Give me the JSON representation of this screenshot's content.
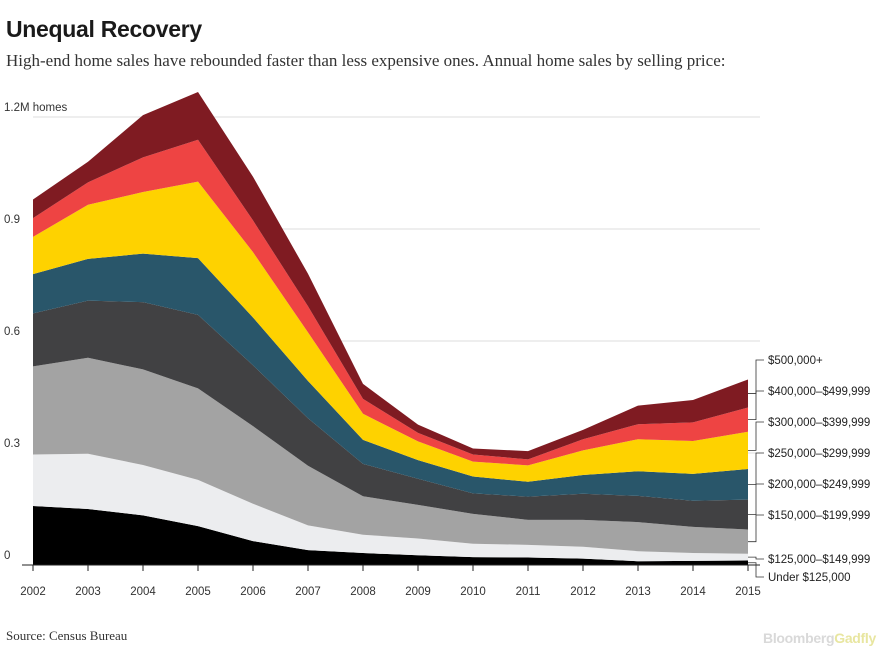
{
  "title": "Unequal Recovery",
  "subtitle": "High-end home sales have rebounded faster than less expensive ones. Annual home sales by selling price:",
  "source": "Source: Census Bureau",
  "brand": {
    "part1": "Bloomberg",
    "part2": "Gadfly"
  },
  "chart_data": {
    "type": "area",
    "stacked": true,
    "x": [
      2002,
      2003,
      2004,
      2005,
      2006,
      2007,
      2008,
      2009,
      2010,
      2011,
      2012,
      2013,
      2014,
      2015
    ],
    "ylim": [
      0,
      1.2
    ],
    "yticks": [
      {
        "value": 0,
        "label": "0"
      },
      {
        "value": 0.3,
        "label": "0.3"
      },
      {
        "value": 0.6,
        "label": "0.6"
      },
      {
        "value": 0.9,
        "label": "0.9"
      },
      {
        "value": 1.2,
        "label": "1.2M homes"
      }
    ],
    "grid": true,
    "legend": "right, labels at series ends",
    "series": [
      {
        "name": "Under $125,000",
        "color": "#000000",
        "values": [
          0.158,
          0.15,
          0.133,
          0.104,
          0.064,
          0.04,
          0.032,
          0.026,
          0.021,
          0.02,
          0.017,
          0.01,
          0.011,
          0.012
        ]
      },
      {
        "name": "$125,000–$149,999",
        "color": "#ecedef",
        "values": [
          0.138,
          0.148,
          0.135,
          0.124,
          0.1,
          0.066,
          0.049,
          0.045,
          0.036,
          0.034,
          0.032,
          0.027,
          0.021,
          0.018
        ]
      },
      {
        "name": "$150,000–$199,999",
        "color": "#a3a3a3",
        "values": [
          0.236,
          0.257,
          0.256,
          0.245,
          0.208,
          0.16,
          0.103,
          0.09,
          0.08,
          0.067,
          0.072,
          0.078,
          0.07,
          0.065
        ]
      },
      {
        "name": "$200,000–$249,999",
        "color": "#414143",
        "values": [
          0.142,
          0.153,
          0.18,
          0.197,
          0.163,
          0.127,
          0.087,
          0.07,
          0.055,
          0.062,
          0.07,
          0.07,
          0.07,
          0.08
        ]
      },
      {
        "name": "$250,000–$299,999",
        "color": "#29566a",
        "values": [
          0.105,
          0.112,
          0.13,
          0.152,
          0.128,
          0.1,
          0.064,
          0.05,
          0.045,
          0.04,
          0.05,
          0.066,
          0.072,
          0.082
        ]
      },
      {
        "name": "$300,000–$399,999",
        "color": "#fed200",
        "values": [
          0.1,
          0.145,
          0.165,
          0.205,
          0.175,
          0.13,
          0.07,
          0.05,
          0.04,
          0.044,
          0.066,
          0.086,
          0.088,
          0.1
        ]
      },
      {
        "name": "$400,000–$499,999",
        "color": "#ee4443",
        "values": [
          0.05,
          0.06,
          0.093,
          0.112,
          0.085,
          0.07,
          0.04,
          0.023,
          0.019,
          0.016,
          0.03,
          0.04,
          0.05,
          0.065
        ]
      },
      {
        "name": "$500,000+",
        "color": "#7f1b22",
        "values": [
          0.05,
          0.055,
          0.113,
          0.128,
          0.117,
          0.087,
          0.04,
          0.022,
          0.016,
          0.022,
          0.025,
          0.05,
          0.06,
          0.075
        ]
      }
    ]
  }
}
